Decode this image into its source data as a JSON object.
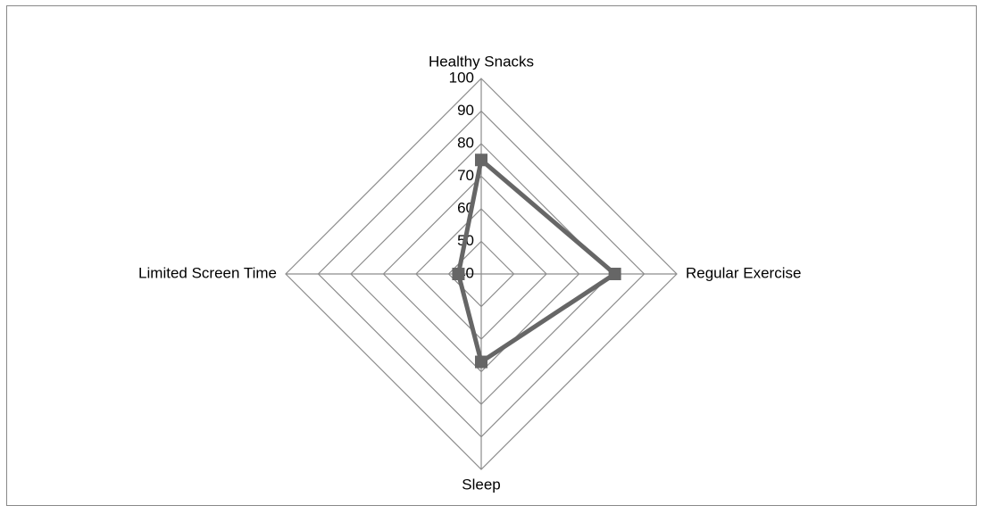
{
  "chart_data": {
    "type": "radar",
    "categories": [
      "Healthy Snacks",
      "Regular Exercise",
      "Sleep",
      "Limited Screen Time"
    ],
    "values": [
      75,
      81,
      67,
      47
    ],
    "color": "#666666",
    "ylim": [
      40,
      100
    ],
    "yticks": [
      40,
      50,
      60,
      70,
      80,
      90,
      100
    ],
    "grid": true
  }
}
